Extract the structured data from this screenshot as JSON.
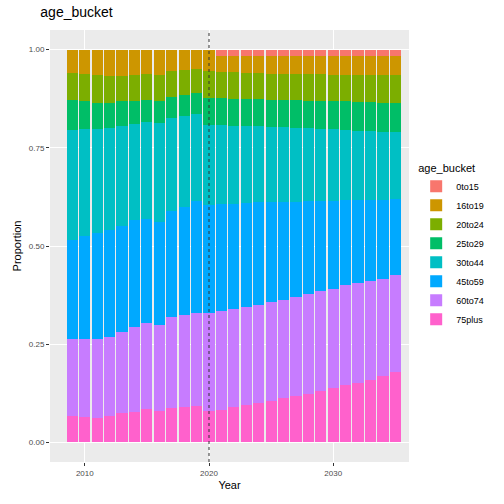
{
  "chart_data": {
    "type": "bar",
    "title": "age_bucket",
    "x_label": "Year",
    "y_label": "Proportion",
    "legend_title": "age_bucket",
    "legend": "right",
    "stacked": true,
    "grid": true,
    "x": [
      2009,
      2010,
      2011,
      2012,
      2013,
      2014,
      2015,
      2016,
      2017,
      2018,
      2019,
      2020,
      2021,
      2022,
      2023,
      2024,
      2025,
      2026,
      2027,
      2028,
      2029,
      2030,
      2031,
      2032,
      2033,
      2034,
      2035
    ],
    "xlim": [
      2007.2,
      2036.1
    ],
    "xticks": [
      2010,
      2020,
      2030
    ],
    "ylim": [
      -0.05,
      1.05
    ],
    "yticks": [
      {
        "value": 0,
        "label": "0.00"
      },
      {
        "value": 0.25,
        "label": "0.25"
      },
      {
        "value": 0.5,
        "label": "0.50"
      },
      {
        "value": 0.75,
        "label": "0.75"
      },
      {
        "value": 1,
        "label": "1.00"
      }
    ],
    "reference_line": {
      "x": 2020,
      "line_style": "dotted"
    },
    "series": [
      {
        "name": "0to15",
        "color": "#F8766D",
        "values": [
          0,
          0,
          0,
          0,
          0,
          0,
          0,
          0,
          0,
          0,
          0,
          0,
          0.015,
          0.015,
          0.015,
          0.015,
          0.015,
          0.015,
          0.015,
          0.015,
          0.015,
          0.015,
          0.015,
          0.015,
          0.015,
          0.015,
          0.015
        ]
      },
      {
        "name": "16to19",
        "color": "#CD9600",
        "values": [
          0.059,
          0.062,
          0.065,
          0.067,
          0.068,
          0.065,
          0.063,
          0.065,
          0.055,
          0.053,
          0.05,
          0.055,
          0.042,
          0.043,
          0.045,
          0.045,
          0.046,
          0.047,
          0.047,
          0.048,
          0.048,
          0.049,
          0.049,
          0.05,
          0.05,
          0.05,
          0.05
        ]
      },
      {
        "name": "20to24",
        "color": "#7CAE00",
        "values": [
          0.068,
          0.07,
          0.07,
          0.068,
          0.064,
          0.065,
          0.065,
          0.065,
          0.065,
          0.062,
          0.06,
          0.068,
          0.066,
          0.067,
          0.065,
          0.066,
          0.066,
          0.066,
          0.066,
          0.067,
          0.067,
          0.067,
          0.068,
          0.068,
          0.069,
          0.07,
          0.07
        ]
      },
      {
        "name": "25to29",
        "color": "#00BE67",
        "values": [
          0.078,
          0.071,
          0.067,
          0.065,
          0.063,
          0.06,
          0.057,
          0.058,
          0.055,
          0.055,
          0.055,
          0.069,
          0.069,
          0.069,
          0.07,
          0.069,
          0.07,
          0.07,
          0.072,
          0.07,
          0.072,
          0.072,
          0.073,
          0.074,
          0.074,
          0.075,
          0.075
        ]
      },
      {
        "name": "30to44",
        "color": "#00BFC4",
        "values": [
          0.279,
          0.272,
          0.266,
          0.26,
          0.255,
          0.245,
          0.245,
          0.252,
          0.235,
          0.23,
          0.22,
          0.203,
          0.201,
          0.198,
          0.195,
          0.193,
          0.191,
          0.189,
          0.187,
          0.185,
          0.183,
          0.182,
          0.178,
          0.176,
          0.174,
          0.172,
          0.17
        ]
      },
      {
        "name": "45to59",
        "color": "#00A9FF",
        "values": [
          0.254,
          0.263,
          0.27,
          0.272,
          0.27,
          0.27,
          0.265,
          0.26,
          0.27,
          0.275,
          0.285,
          0.275,
          0.272,
          0.268,
          0.265,
          0.262,
          0.255,
          0.251,
          0.243,
          0.237,
          0.23,
          0.225,
          0.217,
          0.212,
          0.208,
          0.203,
          0.195
        ]
      },
      {
        "name": "60to74",
        "color": "#C77CFF",
        "values": [
          0.194,
          0.197,
          0.199,
          0.2,
          0.205,
          0.217,
          0.22,
          0.22,
          0.232,
          0.235,
          0.238,
          0.25,
          0.252,
          0.25,
          0.25,
          0.25,
          0.251,
          0.25,
          0.252,
          0.254,
          0.255,
          0.252,
          0.255,
          0.253,
          0.25,
          0.247,
          0.247
        ]
      },
      {
        "name": "75plus",
        "color": "#FF61CC",
        "values": [
          0.068,
          0.065,
          0.063,
          0.068,
          0.075,
          0.078,
          0.085,
          0.08,
          0.088,
          0.09,
          0.092,
          0.08,
          0.083,
          0.09,
          0.095,
          0.1,
          0.106,
          0.112,
          0.118,
          0.124,
          0.13,
          0.138,
          0.145,
          0.152,
          0.16,
          0.168,
          0.178
        ]
      }
    ]
  }
}
